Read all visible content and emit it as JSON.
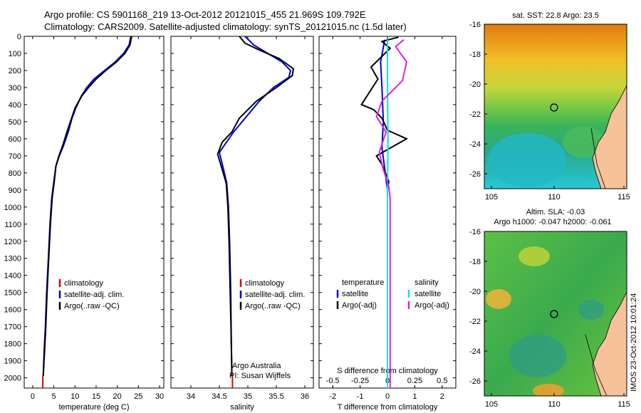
{
  "header": {
    "line1": "Argo profile: CS 5901168_219 13-Oct-2012 20121015_455 21.969S 109.792E",
    "line2": "Climatology: CARS2009. Satellite-adjusted climatology: synTS_20121015.nc (1.5d later)"
  },
  "colors": {
    "climatology": "#e00000",
    "satellite": "#0000e0",
    "argo": "#000000",
    "sal_satellite": "#00e5e5",
    "sal_argo": "#e020e0"
  },
  "chart_data": [
    {
      "type": "line",
      "xlabel": "temperature (deg C)",
      "xlim": [
        -2,
        31
      ],
      "ylim": [
        0,
        2060
      ],
      "y_inverted": true,
      "xticks": [
        "0",
        "5",
        "10",
        "15",
        "20",
        "25",
        "30"
      ],
      "yticks": [
        "0",
        "100",
        "200",
        "300",
        "400",
        "500",
        "600",
        "700",
        "800",
        "900",
        "1000",
        "1100",
        "1200",
        "1300",
        "1400",
        "1500",
        "1600",
        "1700",
        "1800",
        "1900",
        "2000"
      ],
      "legend": [
        "climatology",
        "satellite-adj. clim.",
        "Argo(..raw -QC)"
      ],
      "series": [
        {
          "name": "climatology",
          "color": "#e00000",
          "points": [
            [
              2.4,
              1990
            ],
            [
              2.4,
              2060
            ]
          ]
        },
        {
          "name": "satellite-adj. clim.",
          "color": "#0000e0",
          "points": [
            [
              23.2,
              0
            ],
            [
              22.8,
              50
            ],
            [
              21.5,
              100
            ],
            [
              19.5,
              150
            ],
            [
              17,
              200
            ],
            [
              14.5,
              250
            ],
            [
              12.8,
              300
            ],
            [
              11.5,
              350
            ],
            [
              10.2,
              420
            ],
            [
              9.3,
              480
            ],
            [
              8.4,
              560
            ],
            [
              7.3,
              640
            ],
            [
              6.3,
              700
            ],
            [
              5.5,
              760
            ],
            [
              5,
              850
            ],
            [
              4.5,
              950
            ],
            [
              4.1,
              1100
            ],
            [
              3.7,
              1300
            ],
            [
              3.3,
              1500
            ],
            [
              3,
              1700
            ],
            [
              2.7,
              1850
            ],
            [
              2.5,
              1990
            ]
          ]
        },
        {
          "name": "Argo(..raw -QC)",
          "color": "#000000",
          "points": [
            [
              23.4,
              0
            ],
            [
              23,
              50
            ],
            [
              21.8,
              100
            ],
            [
              19.8,
              150
            ],
            [
              17.3,
              200
            ],
            [
              15,
              250
            ],
            [
              13.2,
              300
            ],
            [
              11.6,
              350
            ],
            [
              10,
              420
            ],
            [
              9.2,
              480
            ],
            [
              8.1,
              560
            ],
            [
              7.1,
              640
            ],
            [
              6.2,
              700
            ],
            [
              5.5,
              760
            ],
            [
              5.1,
              850
            ],
            [
              4.6,
              950
            ],
            [
              4.2,
              1100
            ],
            [
              3.8,
              1300
            ],
            [
              3.4,
              1500
            ],
            [
              3.1,
              1700
            ],
            [
              2.8,
              1850
            ],
            [
              2.5,
              1990
            ]
          ]
        }
      ]
    },
    {
      "type": "line",
      "xlabel": "salinity",
      "xlim": [
        33.65,
        36.15
      ],
      "ylim": [
        0,
        2060
      ],
      "y_inverted": true,
      "xticks": [
        "34",
        "34.5",
        "35",
        "35.5",
        "36"
      ],
      "legend": [
        "climatology",
        "satellite-adj. clim.",
        "Argo(..raw -QC)"
      ],
      "annotations": [
        "Argo Australia",
        "PI: Susan Wijffels"
      ],
      "series": [
        {
          "name": "climatology",
          "color": "#e00000",
          "points": [
            [
              34.73,
              1990
            ],
            [
              34.73,
              2060
            ]
          ]
        },
        {
          "name": "satellite-adj. clim.",
          "color": "#0000e0",
          "points": [
            [
              34.95,
              0
            ],
            [
              35.1,
              50
            ],
            [
              35.35,
              100
            ],
            [
              35.6,
              150
            ],
            [
              35.75,
              200
            ],
            [
              35.72,
              240
            ],
            [
              35.45,
              300
            ],
            [
              35.2,
              380
            ],
            [
              35.0,
              460
            ],
            [
              34.75,
              560
            ],
            [
              34.5,
              680
            ],
            [
              34.56,
              760
            ],
            [
              34.63,
              860
            ],
            [
              34.66,
              1000
            ],
            [
              34.68,
              1200
            ],
            [
              34.7,
              1500
            ],
            [
              34.71,
              1800
            ],
            [
              34.72,
              1990
            ]
          ]
        },
        {
          "name": "Argo(..raw -QC)",
          "color": "#000000",
          "points": [
            [
              34.85,
              0
            ],
            [
              34.95,
              40
            ],
            [
              35.2,
              80
            ],
            [
              35.55,
              130
            ],
            [
              35.8,
              190
            ],
            [
              35.78,
              230
            ],
            [
              35.5,
              300
            ],
            [
              35.15,
              380
            ],
            [
              34.85,
              480
            ],
            [
              34.72,
              560
            ],
            [
              34.55,
              620
            ],
            [
              34.47,
              690
            ],
            [
              34.55,
              780
            ],
            [
              34.62,
              860
            ],
            [
              34.65,
              1000
            ],
            [
              34.67,
              1200
            ],
            [
              34.69,
              1500
            ],
            [
              34.71,
              1800
            ],
            [
              34.72,
              1990
            ]
          ]
        }
      ]
    },
    {
      "type": "line",
      "xlabel": "T difference from climatology",
      "xlabel_top": "S difference from climatology",
      "xlim": [
        -2.5,
        2.5
      ],
      "xlim_top": [
        -0.625,
        0.625
      ],
      "ylim": [
        0,
        2060
      ],
      "y_inverted": true,
      "xticks": [
        "-2",
        "-1",
        "0",
        "1",
        "2"
      ],
      "xticks_top": [
        "-0.5",
        "-0.25",
        "0",
        "0.25",
        "0.5"
      ],
      "legend_left": {
        "title": "temperature",
        "items": [
          "satellite",
          "Argo(-adj)"
        ]
      },
      "legend_right": {
        "title": "salinity",
        "items": [
          "satellite",
          "Argo(-adj)"
        ]
      },
      "series": [
        {
          "name": "temperature satellite",
          "color": "#0000e0",
          "points": [
            [
              -0.1,
              20
            ],
            [
              -0.25,
              150
            ],
            [
              -0.2,
              300
            ],
            [
              -0.15,
              500
            ],
            [
              -0.2,
              650
            ],
            [
              0,
              900
            ],
            [
              0,
              2060
            ]
          ]
        },
        {
          "name": "temperature Argo(-adj)",
          "color": "#000000",
          "points": [
            [
              0.4,
              5
            ],
            [
              -0.2,
              30
            ],
            [
              0.1,
              70
            ],
            [
              -0.6,
              180
            ],
            [
              -0.35,
              250
            ],
            [
              -0.95,
              400
            ],
            [
              -0.5,
              430
            ],
            [
              -0.2,
              480
            ],
            [
              0,
              550
            ],
            [
              0.7,
              600
            ],
            [
              -0.4,
              700
            ],
            [
              -0.2,
              750
            ],
            [
              0.05,
              850
            ],
            [
              0,
              900
            ],
            [
              0,
              2060
            ]
          ]
        },
        {
          "name": "salinity satellite",
          "color": "#00e5e5",
          "points": [
            [
              0,
              20
            ],
            [
              0,
              300
            ],
            [
              0.02,
              600
            ],
            [
              0,
              900
            ],
            [
              0,
              2060
            ]
          ]
        },
        {
          "name": "salinity Argo(-adj)",
          "color": "#e020e0",
          "points": [
            [
              0.6,
              20
            ],
            [
              0.3,
              60
            ],
            [
              0.7,
              150
            ],
            [
              0.55,
              260
            ],
            [
              -0.2,
              380
            ],
            [
              -0.4,
              470
            ],
            [
              -0.05,
              560
            ],
            [
              -0.3,
              680
            ],
            [
              -0.15,
              780
            ],
            [
              0.05,
              880
            ],
            [
              0.1,
              950
            ],
            [
              0.1,
              2060
            ]
          ]
        }
      ]
    }
  ],
  "map_sst": {
    "title": "sat. SST: 22.8 Argo: 23.5",
    "yticks": [
      "-16",
      "-18",
      "-20",
      "-22",
      "-24",
      "-26"
    ],
    "xticks": [
      "105",
      "110",
      "115"
    ]
  },
  "map_sla": {
    "title1": "Altim. SLA: -0.03",
    "title2": "Argo h1000: -0.047 h2000: -0.061",
    "yticks": [
      "-16",
      "-18",
      "-20",
      "-22",
      "-24",
      "-26"
    ],
    "xticks": [
      "105",
      "110",
      "115"
    ]
  },
  "credit": "IMOS 23-Oct-2012 10:01:24"
}
